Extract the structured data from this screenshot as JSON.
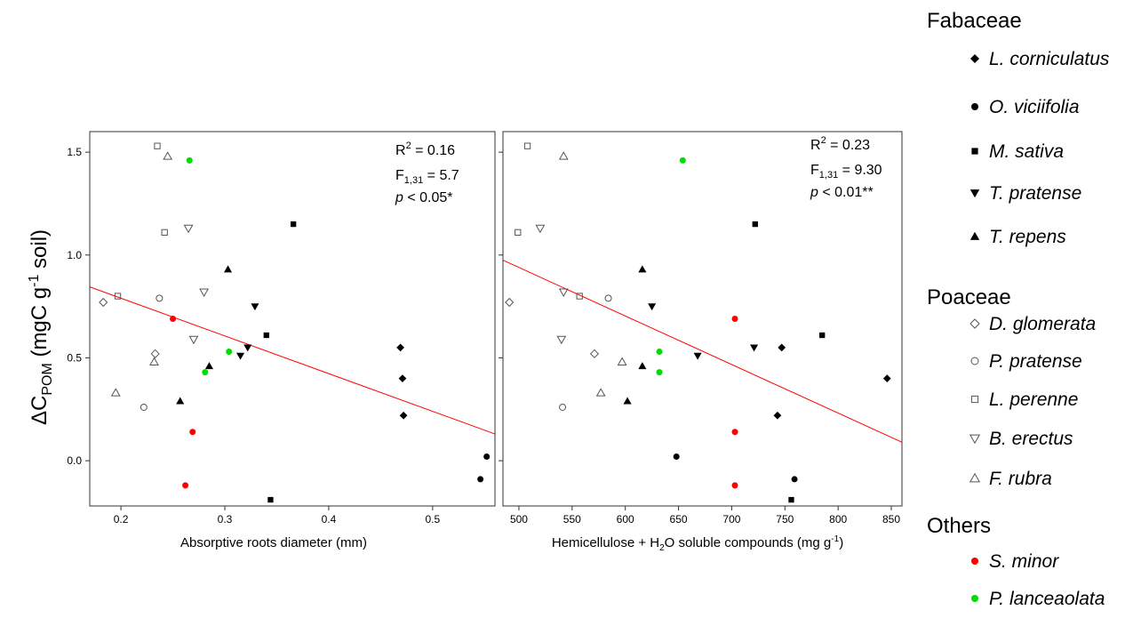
{
  "ylabel": {
    "prefix": "ΔC",
    "sub": "POM",
    "mid": " (mgC g",
    "sup": "-1",
    "suffix": " soil)"
  },
  "colors": {
    "black": "#000000",
    "red": "#ff0000",
    "green": "#00dd00",
    "fit_line": "#ff0000"
  },
  "chart_data": [
    {
      "type": "scatter",
      "xlabel": "Absorptive roots diameter (mm)",
      "xlim": [
        0.17,
        0.56
      ],
      "ylim": [
        -0.22,
        1.6
      ],
      "xticks": [
        0.2,
        0.3,
        0.4,
        0.5
      ],
      "xtick_labels": [
        "0.2",
        "0.3",
        "0.4",
        "0.5"
      ],
      "yticks": [
        0.0,
        0.5,
        1.0,
        1.5
      ],
      "ytick_labels": [
        "0.0",
        "0.5",
        "1.0",
        "1.5"
      ],
      "fit_line": {
        "x": [
          0.17,
          0.56
        ],
        "y": [
          0.845,
          0.13
        ]
      },
      "stats": {
        "r2": {
          "pre": "R",
          "sup": "2",
          "post": " = 0.16"
        },
        "f": {
          "pre": "F",
          "sub": "1,31",
          "post": " = 5.7"
        },
        "p": {
          "italic": "p",
          "post": " < 0.05*"
        }
      },
      "points": [
        {
          "species": "L. corniculatus",
          "x": 0.469,
          "y": 0.55
        },
        {
          "species": "L. corniculatus",
          "x": 0.471,
          "y": 0.4
        },
        {
          "species": "L. corniculatus",
          "x": 0.472,
          "y": 0.22
        },
        {
          "species": "O. viciifolia",
          "x": 0.552,
          "y": 0.02
        },
        {
          "species": "O. viciifolia",
          "x": 0.546,
          "y": -0.09
        },
        {
          "species": "M. sativa",
          "x": 0.366,
          "y": 1.15
        },
        {
          "species": "M. sativa",
          "x": 0.34,
          "y": 0.61
        },
        {
          "species": "M. sativa",
          "x": 0.344,
          "y": -0.19
        },
        {
          "species": "T. pratense",
          "x": 0.329,
          "y": 0.75
        },
        {
          "species": "T. pratense",
          "x": 0.322,
          "y": 0.55
        },
        {
          "species": "T. pratense",
          "x": 0.315,
          "y": 0.51
        },
        {
          "species": "T. repens",
          "x": 0.303,
          "y": 0.93
        },
        {
          "species": "T. repens",
          "x": 0.285,
          "y": 0.46
        },
        {
          "species": "T. repens",
          "x": 0.257,
          "y": 0.29
        },
        {
          "species": "D. glomerata",
          "x": 0.183,
          "y": 0.77
        },
        {
          "species": "D. glomerata",
          "x": 0.233,
          "y": 0.52
        },
        {
          "species": "P. pratense",
          "x": 0.237,
          "y": 0.79
        },
        {
          "species": "P. pratense",
          "x": 0.222,
          "y": 0.26
        },
        {
          "species": "L. perenne",
          "x": 0.235,
          "y": 1.53
        },
        {
          "species": "L. perenne",
          "x": 0.242,
          "y": 1.11
        },
        {
          "species": "L. perenne",
          "x": 0.197,
          "y": 0.8
        },
        {
          "species": "B. erectus",
          "x": 0.265,
          "y": 1.13
        },
        {
          "species": "B. erectus",
          "x": 0.28,
          "y": 0.82
        },
        {
          "species": "B. erectus",
          "x": 0.27,
          "y": 0.59
        },
        {
          "species": "F. rubra",
          "x": 0.245,
          "y": 1.48
        },
        {
          "species": "F. rubra",
          "x": 0.232,
          "y": 0.48
        },
        {
          "species": "F. rubra",
          "x": 0.195,
          "y": 0.33
        },
        {
          "species": "S. minor",
          "x": 0.25,
          "y": 0.69
        },
        {
          "species": "S. minor",
          "x": 0.269,
          "y": 0.14
        },
        {
          "species": "S. minor",
          "x": 0.262,
          "y": -0.12
        },
        {
          "species": "P. lanceaolata",
          "x": 0.266,
          "y": 1.46
        },
        {
          "species": "P. lanceaolata",
          "x": 0.304,
          "y": 0.53
        },
        {
          "species": "P. lanceaolata",
          "x": 0.281,
          "y": 0.43
        }
      ]
    },
    {
      "type": "scatter",
      "xlabel": {
        "pre": "Hemicellulose + H",
        "sub": "2",
        "mid": "O soluble compounds (mg g",
        "sup": "-1",
        "post": ")"
      },
      "xlim": [
        485,
        860
      ],
      "ylim": [
        -0.22,
        1.6
      ],
      "xticks": [
        500,
        550,
        600,
        650,
        700,
        750,
        800,
        850
      ],
      "xtick_labels": [
        "500",
        "550",
        "600",
        "650",
        "700",
        "750",
        "800",
        "850"
      ],
      "yticks": [
        0.0,
        0.5,
        1.0,
        1.5
      ],
      "fit_line": {
        "x": [
          485,
          860
        ],
        "y": [
          0.975,
          0.09
        ]
      },
      "stats": {
        "r2": {
          "pre": "R",
          "sup": "2",
          "post": " = 0.23"
        },
        "f": {
          "pre": "F",
          "sub": "1,31",
          "post": " = 9.30"
        },
        "p": {
          "italic": "p",
          "post": " < 0.01**"
        }
      },
      "points": [
        {
          "species": "L. corniculatus",
          "x": 747,
          "y": 0.55
        },
        {
          "species": "L. corniculatus",
          "x": 846,
          "y": 0.4
        },
        {
          "species": "L. corniculatus",
          "x": 743,
          "y": 0.22
        },
        {
          "species": "O. viciifolia",
          "x": 648,
          "y": 0.02
        },
        {
          "species": "O. viciifolia",
          "x": 759,
          "y": -0.09
        },
        {
          "species": "M. sativa",
          "x": 722,
          "y": 1.15
        },
        {
          "species": "M. sativa",
          "x": 785,
          "y": 0.61
        },
        {
          "species": "M. sativa",
          "x": 756,
          "y": -0.19
        },
        {
          "species": "T. pratense",
          "x": 625,
          "y": 0.75
        },
        {
          "species": "T. pratense",
          "x": 721,
          "y": 0.55
        },
        {
          "species": "T. pratense",
          "x": 668,
          "y": 0.51
        },
        {
          "species": "T. repens",
          "x": 616,
          "y": 0.93
        },
        {
          "species": "T. repens",
          "x": 616,
          "y": 0.46
        },
        {
          "species": "T. repens",
          "x": 602,
          "y": 0.29
        },
        {
          "species": "D. glomerata",
          "x": 491,
          "y": 0.77
        },
        {
          "species": "D. glomerata",
          "x": 571,
          "y": 0.52
        },
        {
          "species": "P. pratense",
          "x": 584,
          "y": 0.79
        },
        {
          "species": "P. pratense",
          "x": 541,
          "y": 0.26
        },
        {
          "species": "L. perenne",
          "x": 508,
          "y": 1.53
        },
        {
          "species": "L. perenne",
          "x": 499,
          "y": 1.11
        },
        {
          "species": "L. perenne",
          "x": 557,
          "y": 0.8
        },
        {
          "species": "B. erectus",
          "x": 520,
          "y": 1.13
        },
        {
          "species": "B. erectus",
          "x": 542,
          "y": 0.82
        },
        {
          "species": "B. erectus",
          "x": 540,
          "y": 0.59
        },
        {
          "species": "F. rubra",
          "x": 542,
          "y": 1.48
        },
        {
          "species": "F. rubra",
          "x": 597,
          "y": 0.48
        },
        {
          "species": "F. rubra",
          "x": 577,
          "y": 0.33
        },
        {
          "species": "S. minor",
          "x": 703,
          "y": 0.69
        },
        {
          "species": "S. minor",
          "x": 703,
          "y": 0.14
        },
        {
          "species": "S. minor",
          "x": 703,
          "y": -0.12
        },
        {
          "species": "P. lanceaolata",
          "x": 654,
          "y": 1.46
        },
        {
          "species": "P. lanceaolata",
          "x": 632,
          "y": 0.53
        },
        {
          "species": "P. lanceaolata",
          "x": 632,
          "y": 0.43
        }
      ]
    }
  ],
  "legend": {
    "groups": [
      {
        "title": "Fabaceae",
        "items": [
          {
            "label": "L. corniculatus",
            "marker": "diamond-filled",
            "color": "#000000"
          },
          {
            "label": "O. viciifolia",
            "marker": "circle-filled",
            "color": "#000000"
          },
          {
            "label": "M. sativa",
            "marker": "square-filled",
            "color": "#000000"
          },
          {
            "label": "T. pratense",
            "marker": "triangle-down-filled",
            "color": "#000000"
          },
          {
            "label": "T. repens",
            "marker": "triangle-up-filled",
            "color": "#000000"
          }
        ]
      },
      {
        "title": "Poaceae",
        "items": [
          {
            "label": "D. glomerata",
            "marker": "diamond-open",
            "color": "#555555"
          },
          {
            "label": "P. pratense",
            "marker": "circle-open",
            "color": "#555555"
          },
          {
            "label": "L. perenne",
            "marker": "square-open",
            "color": "#555555"
          },
          {
            "label": "B. erectus",
            "marker": "triangle-down-open",
            "color": "#555555"
          },
          {
            "label": "F. rubra",
            "marker": "triangle-up-open",
            "color": "#555555"
          }
        ]
      },
      {
        "title": "Others",
        "items": [
          {
            "label": "S. minor",
            "marker": "circle-filled",
            "color": "#ff0000"
          },
          {
            "label": "P. lanceaolata",
            "marker": "circle-filled",
            "color": "#00dd00"
          }
        ]
      }
    ]
  }
}
